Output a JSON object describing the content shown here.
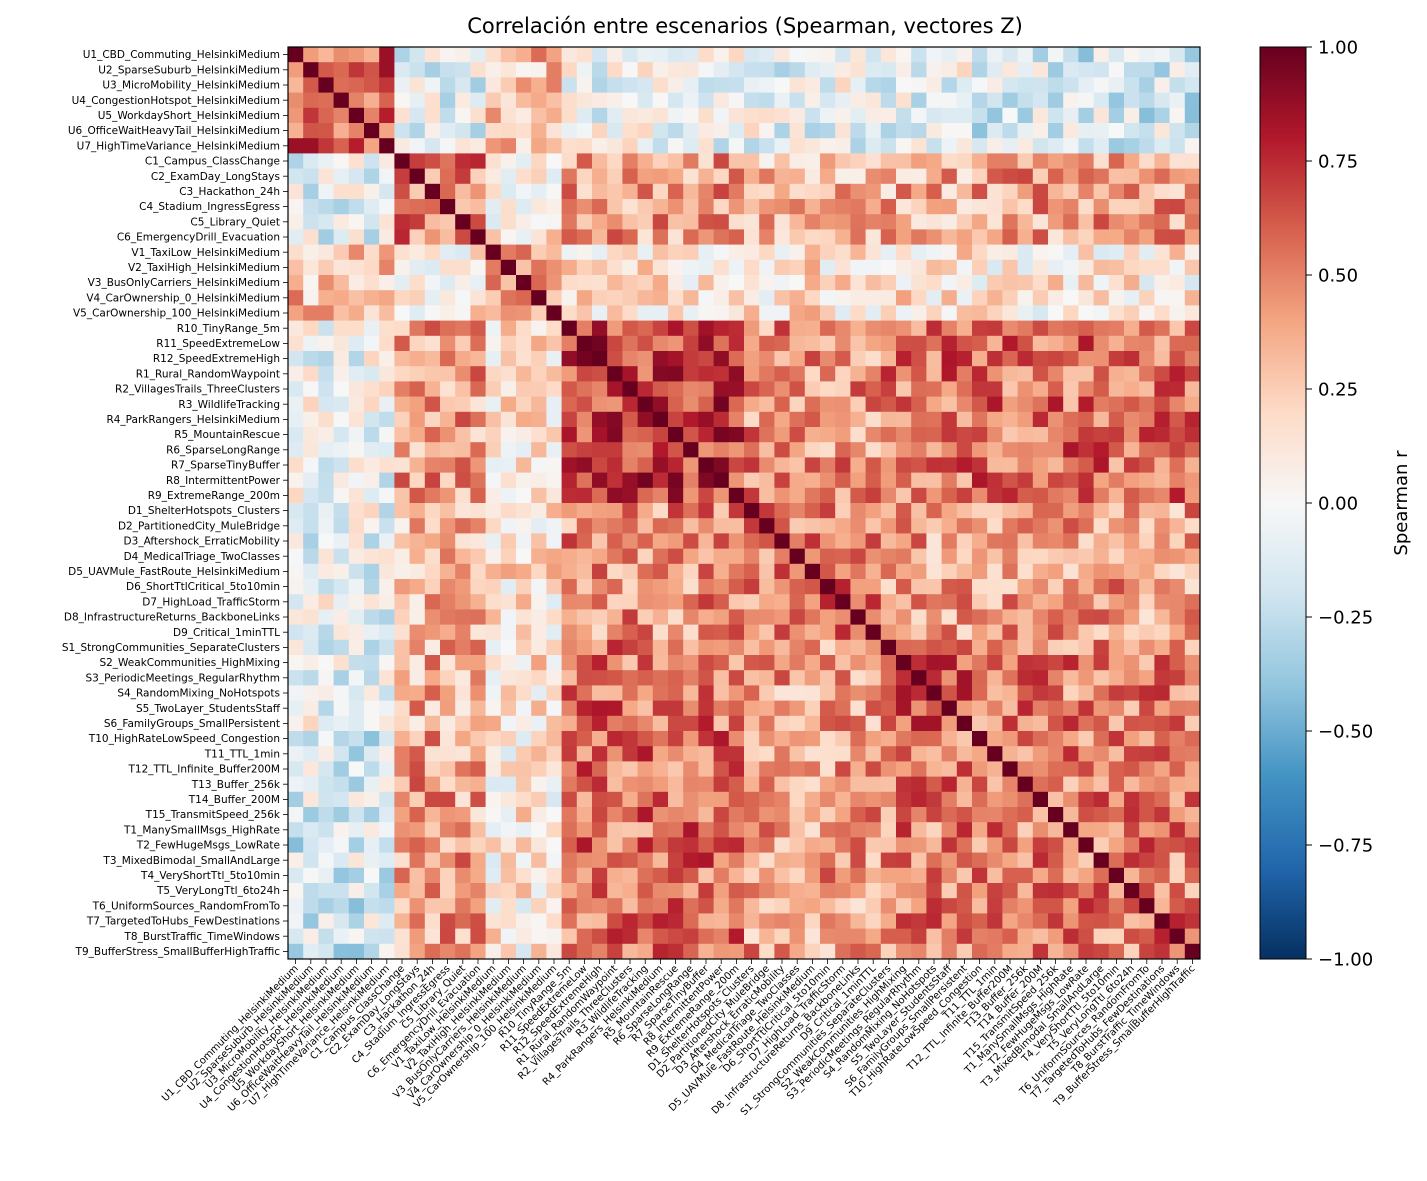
{
  "chart_data": {
    "type": "heatmap",
    "title": "Correlación entre escenarios (Spearman, vectores Z)",
    "colorbar_label": "Spearman r",
    "value_range": [
      -1.0,
      1.0
    ],
    "colorbar_ticks": [
      "1.00",
      "0.75",
      "0.50",
      "0.25",
      "0.00",
      "−0.25",
      "−0.50",
      "−0.75",
      "−1.00"
    ],
    "colormap": "RdBu_r",
    "labels": [
      "U1_CBD_Commuting_HelsinkiMedium",
      "U2_SparseSuburb_HelsinkiMedium",
      "U3_MicroMobility_HelsinkiMedium",
      "U4_CongestionHotspot_HelsinkiMedium",
      "U5_WorkdayShort_HelsinkiMedium",
      "U6_OfficeWaitHeavyTail_HelsinkiMedium",
      "U7_HighTimeVariance_HelsinkiMedium",
      "C1_Campus_ClassChange",
      "C2_ExamDay_LongStays",
      "C3_Hackathon_24h",
      "C4_Stadium_IngressEgress",
      "C5_Library_Quiet",
      "C6_EmergencyDrill_Evacuation",
      "V1_TaxiLow_HelsinkiMedium",
      "V2_TaxiHigh_HelsinkiMedium",
      "V3_BusOnlyCarriers_HelsinkiMedium",
      "V4_CarOwnership_0_HelsinkiMedium",
      "V5_CarOwnership_100_HelsinkiMedium",
      "R10_TinyRange_5m",
      "R11_SpeedExtremeLow",
      "R12_SpeedExtremeHigh",
      "R1_Rural_RandomWaypoint",
      "R2_VillagesTrails_ThreeClusters",
      "R3_WildlifeTracking",
      "R4_ParkRangers_HelsinkiMedium",
      "R5_MountainRescue",
      "R6_SparseLongRange",
      "R7_SparseTinyBuffer",
      "R8_IntermittentPower",
      "R9_ExtremeRange_200m",
      "D1_ShelterHotspots_Clusters",
      "D2_PartitionedCity_MuleBridge",
      "D3_Aftershock_ErraticMobility",
      "D4_MedicalTriage_TwoClasses",
      "D5_UAVMule_FastRoute_HelsinkiMedium",
      "D6_ShortTtlCritical_5to10min",
      "D7_HighLoad_TrafficStorm",
      "D8_InfrastructureReturns_BackboneLinks",
      "D9_Critical_1minTTL",
      "S1_StrongCommunities_SeparateClusters",
      "S2_WeakCommunities_HighMixing",
      "S3_PeriodicMeetings_RegularRhythm",
      "S4_RandomMixing_NoHotspots",
      "S5_TwoLayer_StudentsStaff",
      "S6_FamilyGroups_SmallPersistent",
      "T10_HighRateLowSpeed_Congestion",
      "T11_TTL_1min",
      "T12_TTL_Infinite_Buffer200M",
      "T13_Buffer_256k",
      "T14_Buffer_200M",
      "T15_TransmitSpeed_256k",
      "T1_ManySmallMsgs_HighRate",
      "T2_FewHugeMsgs_LowRate",
      "T3_MixedBimodal_SmallAndLarge",
      "T4_VeryShortTtl_5to10min",
      "T5_VeryLongTtl_6to24h",
      "T6_UniformSources_RandomFromTo",
      "T7_TargetedToHubs_FewDestinations",
      "T8_BurstTraffic_TimeWindows",
      "T9_BufferStress_SmallBufferHighTraffic"
    ],
    "group_block_sizes": [
      7,
      6,
      5,
      12,
      9,
      6,
      15
    ],
    "block_mean_correlation": [
      [
        0.6,
        -0.1,
        0.3,
        -0.05,
        -0.05,
        -0.05,
        -0.15
      ],
      [
        -0.1,
        0.5,
        0.1,
        0.4,
        0.3,
        0.35,
        0.4
      ],
      [
        0.3,
        0.1,
        0.4,
        0.15,
        0.15,
        0.15,
        0.1
      ],
      [
        -0.05,
        0.4,
        0.15,
        0.7,
        0.45,
        0.55,
        0.55
      ],
      [
        -0.05,
        0.3,
        0.15,
        0.45,
        0.5,
        0.4,
        0.4
      ],
      [
        -0.05,
        0.35,
        0.15,
        0.55,
        0.4,
        0.6,
        0.5
      ],
      [
        -0.15,
        0.4,
        0.1,
        0.55,
        0.4,
        0.5,
        0.5
      ]
    ],
    "diagonal_value": 1.0,
    "grid": false
  }
}
